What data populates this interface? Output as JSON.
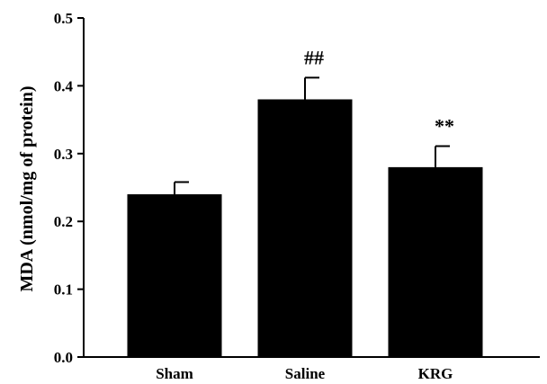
{
  "chart_data": {
    "type": "bar",
    "title": "",
    "xlabel": "",
    "ylabel": "MDA (nmol/mg of protein)",
    "ylim": [
      0,
      0.5
    ],
    "yticks": [
      0.0,
      0.1,
      0.2,
      0.3,
      0.4,
      0.5
    ],
    "ytick_labels": [
      "0.0",
      "0.1",
      "0.2",
      "0.3",
      "0.4",
      "0.5"
    ],
    "categories": [
      "Sham",
      "Saline",
      "KRG"
    ],
    "values": [
      0.24,
      0.38,
      0.28
    ],
    "error_upper": [
      0.018,
      0.032,
      0.031
    ],
    "annotations": [
      "",
      "##",
      "**"
    ],
    "bar_color": "#000000",
    "grid": false,
    "legend": "none"
  }
}
